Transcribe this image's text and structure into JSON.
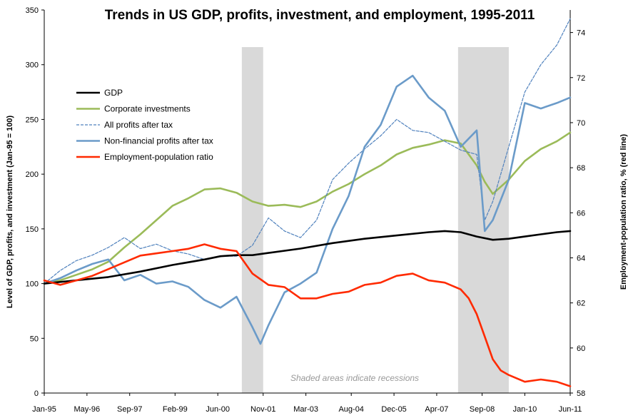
{
  "chart_data": {
    "type": "line",
    "title": "Trends in US GDP, profits, investment, and employment, 1995-2011",
    "ylabel": "Level of GDP, profits, and investment (Jan-95 = 100)",
    "y2label": "Employment-population ratio, % (red line)",
    "ylim": [
      0,
      350
    ],
    "y2lim": [
      58,
      75
    ],
    "yticks": [
      "0",
      "50",
      "100",
      "150",
      "200",
      "250",
      "300",
      "350"
    ],
    "y2ticks": [
      "58",
      "60",
      "62",
      "64",
      "66",
      "68",
      "70",
      "72",
      "74"
    ],
    "x_range": [
      1995.0,
      2011.417
    ],
    "xticks": [
      {
        "label": "Jan-95",
        "t": 1995.0
      },
      {
        "label": "May-96",
        "t": 1996.333
      },
      {
        "label": "Sep-97",
        "t": 1997.667
      },
      {
        "label": "Feb-99",
        "t": 1999.083
      },
      {
        "label": "Jun-00",
        "t": 2000.417
      },
      {
        "label": "Nov-01",
        "t": 2001.833
      },
      {
        "label": "Mar-03",
        "t": 2003.167
      },
      {
        "label": "Aug-04",
        "t": 2004.583
      },
      {
        "label": "Dec-05",
        "t": 2005.917
      },
      {
        "label": "Apr-07",
        "t": 2007.25
      },
      {
        "label": "Sep-08",
        "t": 2008.667
      },
      {
        "label": "Jan-10",
        "t": 2010.0
      },
      {
        "label": "Jun-11",
        "t": 2011.417
      }
    ],
    "recessions": [
      [
        2001.167,
        2001.833
      ],
      [
        2007.917,
        2009.5
      ]
    ],
    "note": "Shaded areas indicate recessions",
    "legend_position": "upper-left",
    "series": [
      {
        "name": "GDP",
        "axis": "left",
        "color": "#000000",
        "style": "solid",
        "width": 2.6,
        "x": [
          1995.0,
          1996.0,
          1997.0,
          1998.0,
          1999.0,
          2000.0,
          2000.5,
          2001.0,
          2001.5,
          2002.0,
          2003.0,
          2004.0,
          2005.0,
          2006.0,
          2007.0,
          2007.5,
          2008.0,
          2008.5,
          2009.0,
          2009.5,
          2010.0,
          2010.5,
          2011.0,
          2011.417
        ],
        "y": [
          100,
          103,
          106,
          111,
          117,
          122,
          125,
          126,
          126,
          128,
          132,
          137,
          141,
          144,
          147,
          148,
          147,
          143,
          140,
          141,
          143,
          145,
          147,
          148
        ]
      },
      {
        "name": "Corporate investments",
        "axis": "left",
        "color": "#9bbb59",
        "style": "solid",
        "width": 2.6,
        "x": [
          1995.0,
          1995.5,
          1996.0,
          1996.5,
          1997.0,
          1997.5,
          1998.0,
          1998.5,
          1999.0,
          1999.5,
          2000.0,
          2000.5,
          2001.0,
          2001.5,
          2002.0,
          2002.5,
          2003.0,
          2003.5,
          2004.0,
          2004.5,
          2005.0,
          2005.5,
          2006.0,
          2006.5,
          2007.0,
          2007.5,
          2008.0,
          2008.5,
          2008.75,
          2009.0,
          2009.5,
          2010.0,
          2010.5,
          2011.0,
          2011.417
        ],
        "y": [
          100,
          103,
          108,
          113,
          120,
          133,
          145,
          158,
          171,
          178,
          186,
          187,
          183,
          175,
          171,
          172,
          170,
          175,
          184,
          191,
          200,
          208,
          218,
          224,
          227,
          231,
          228,
          208,
          193,
          182,
          195,
          212,
          223,
          230,
          238
        ]
      },
      {
        "name": "All profits after tax",
        "axis": "left",
        "color": "#4f81bd",
        "style": "dashed",
        "width": 1.2,
        "x": [
          1995.0,
          1995.5,
          1996.0,
          1996.5,
          1997.0,
          1997.5,
          1998.0,
          1998.5,
          1999.0,
          1999.5,
          2000.0,
          2000.5,
          2001.0,
          2001.5,
          2002.0,
          2002.5,
          2003.0,
          2003.5,
          2004.0,
          2004.5,
          2005.0,
          2005.5,
          2006.0,
          2006.5,
          2007.0,
          2007.5,
          2008.0,
          2008.5,
          2008.75,
          2009.0,
          2009.5,
          2010.0,
          2010.5,
          2011.0,
          2011.417
        ],
        "y": [
          100,
          112,
          121,
          126,
          133,
          142,
          132,
          136,
          130,
          127,
          122,
          125,
          125,
          135,
          160,
          148,
          142,
          158,
          195,
          210,
          223,
          235,
          250,
          240,
          238,
          230,
          222,
          218,
          158,
          175,
          225,
          275,
          300,
          318,
          342
        ]
      },
      {
        "name": "Non-financial profits after tax",
        "axis": "left",
        "color": "#6b9bc9",
        "style": "solid",
        "width": 2.6,
        "x": [
          1995.0,
          1995.5,
          1996.0,
          1996.5,
          1997.0,
          1997.5,
          1998.0,
          1998.5,
          1999.0,
          1999.5,
          2000.0,
          2000.5,
          2001.0,
          2001.5,
          2001.75,
          2002.0,
          2002.5,
          2003.0,
          2003.5,
          2004.0,
          2004.5,
          2005.0,
          2005.5,
          2006.0,
          2006.5,
          2007.0,
          2007.5,
          2008.0,
          2008.5,
          2008.75,
          2009.0,
          2009.5,
          2010.0,
          2010.5,
          2011.0,
          2011.417
        ],
        "y": [
          100,
          105,
          112,
          118,
          122,
          103,
          108,
          100,
          102,
          97,
          85,
          78,
          88,
          60,
          45,
          62,
          92,
          100,
          110,
          150,
          180,
          225,
          245,
          280,
          290,
          270,
          258,
          225,
          240,
          148,
          158,
          195,
          265,
          260,
          265,
          270
        ]
      },
      {
        "name": "Employment-population ratio",
        "axis": "right",
        "color": "#ff2a00",
        "style": "solid",
        "width": 2.6,
        "x": [
          1995.0,
          1995.5,
          1996.0,
          1996.5,
          1997.0,
          1997.5,
          1998.0,
          1998.5,
          1999.0,
          1999.5,
          2000.0,
          2000.5,
          2001.0,
          2001.5,
          2002.0,
          2002.5,
          2003.0,
          2003.5,
          2004.0,
          2004.5,
          2005.0,
          2005.5,
          2006.0,
          2006.5,
          2007.0,
          2007.5,
          2008.0,
          2008.25,
          2008.5,
          2008.75,
          2009.0,
          2009.25,
          2009.5,
          2010.0,
          2010.5,
          2011.0,
          2011.417
        ],
        "y": [
          63.0,
          62.8,
          63.0,
          63.2,
          63.5,
          63.8,
          64.1,
          64.2,
          64.3,
          64.4,
          64.6,
          64.4,
          64.3,
          63.3,
          62.8,
          62.7,
          62.2,
          62.2,
          62.4,
          62.5,
          62.8,
          62.9,
          63.2,
          63.3,
          63.0,
          62.9,
          62.6,
          62.2,
          61.5,
          60.5,
          59.5,
          59.0,
          58.8,
          58.5,
          58.6,
          58.5,
          58.3
        ]
      }
    ]
  }
}
